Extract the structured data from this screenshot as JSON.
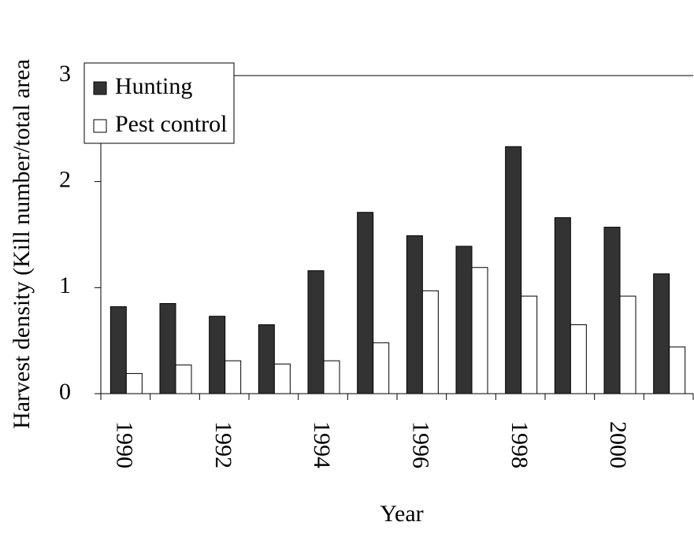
{
  "chart_data": {
    "type": "bar",
    "y_label": "Harvest density (Kill number/total area",
    "x_label": "Year",
    "categories": [
      "1990",
      null,
      "1992",
      null,
      "1994",
      null,
      "1996",
      null,
      "1998",
      null,
      "2000",
      null
    ],
    "series": [
      {
        "name": "Hunting",
        "color": "#333333",
        "values": [
          0.82,
          0.85,
          0.73,
          0.65,
          1.16,
          1.71,
          1.49,
          1.39,
          2.33,
          1.66,
          1.57,
          1.13
        ]
      },
      {
        "name": "Pest control",
        "color": "#ffffff",
        "values": [
          0.19,
          0.27,
          0.31,
          0.28,
          0.31,
          0.48,
          0.97,
          1.19,
          0.92,
          0.65,
          0.92,
          0.44
        ]
      }
    ],
    "ylim": [
      0,
      3
    ],
    "yticks": [
      0,
      1,
      2,
      3
    ],
    "legend": "upper left"
  }
}
